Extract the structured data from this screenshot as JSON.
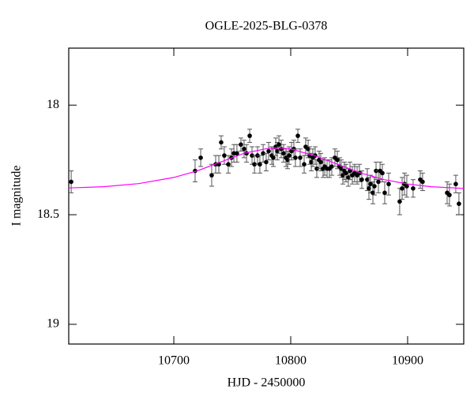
{
  "chart_data": {
    "type": "scatter",
    "title": "OGLE-2025-BLG-0378",
    "x_label": "HJD - 2450000",
    "y_label": "I magnitude",
    "xlim": [
      10610.1,
      10948
    ],
    "ylim": [
      19.09,
      17.74
    ],
    "xticks": [
      10700,
      10800,
      10900
    ],
    "yticks": [
      18,
      18.5,
      19
    ],
    "series": [
      {
        "color": "#000000",
        "x": [
          10612.2,
          10718.2,
          10723,
          10732.4,
          10735.8,
          10738.5,
          10740.5,
          10743.2,
          10746.6,
          10749.3,
          10751.4,
          10754,
          10757.4,
          10760.1,
          10762.2,
          10764.9,
          10766.9,
          10769,
          10771.6,
          10773.6,
          10776.4,
          10779,
          10781.1,
          10783.8,
          10785.1,
          10787.2,
          10788.5,
          10789.9,
          10791.9,
          10793.9,
          10796,
          10797.3,
          10798.6,
          10800.7,
          10802.7,
          10804,
          10806.1,
          10808.1,
          10811.5,
          10812.8,
          10814.9,
          10816.2,
          10817.6,
          10818.9,
          10820.9,
          10822.3,
          10824.3,
          10825.7,
          10827.7,
          10829.1,
          10831.1,
          10833.1,
          10835.1,
          10837.8,
          10839.9,
          10841.9,
          10843.2,
          10844.6,
          10845.9,
          10847.3,
          10849.3,
          10850.7,
          10852.7,
          10854.7,
          10856.8,
          10858.8,
          10860.8,
          10865.5,
          10866.9,
          10868.2,
          10870.3,
          10871.6,
          10873,
          10875,
          10876.4,
          10878.4,
          10880.4,
          10883.8,
          10893.2,
          10895.3,
          10897.3,
          10899.3,
          10904.7,
          10910.8,
          10912.8,
          10933.8,
          10935.8,
          10941.2,
          10943.9
        ],
        "values": [
          18.35,
          18.3,
          18.24,
          18.32,
          18.27,
          18.27,
          18.17,
          18.23,
          18.27,
          18.24,
          18.22,
          18.22,
          18.18,
          18.2,
          18.22,
          18.14,
          18.23,
          18.27,
          18.23,
          18.27,
          18.22,
          18.26,
          18.21,
          18.23,
          18.24,
          18.19,
          18.21,
          18.18,
          18.2,
          18.22,
          18.24,
          18.25,
          18.23,
          18.21,
          18.2,
          18.24,
          18.14,
          18.24,
          18.27,
          18.19,
          18.2,
          18.23,
          18.26,
          18.24,
          18.23,
          18.29,
          18.25,
          18.26,
          18.29,
          18.28,
          18.29,
          18.29,
          18.28,
          18.24,
          18.25,
          18.28,
          18.29,
          18.32,
          18.3,
          18.31,
          18.33,
          18.3,
          18.32,
          18.31,
          18.32,
          18.31,
          18.34,
          18.34,
          18.38,
          18.36,
          18.4,
          18.37,
          18.3,
          18.35,
          18.3,
          18.31,
          18.4,
          18.36,
          18.44,
          18.38,
          18.36,
          18.37,
          18.38,
          18.34,
          18.35,
          18.4,
          18.41,
          18.36,
          18.45
        ],
        "errors": [
          0.05,
          0.05,
          0.04,
          0.05,
          0.04,
          0.04,
          0.03,
          0.04,
          0.04,
          0.04,
          0.04,
          0.04,
          0.03,
          0.04,
          0.04,
          0.03,
          0.04,
          0.04,
          0.04,
          0.04,
          0.04,
          0.04,
          0.04,
          0.04,
          0.04,
          0.04,
          0.04,
          0.04,
          0.04,
          0.04,
          0.04,
          0.04,
          0.04,
          0.04,
          0.04,
          0.04,
          0.03,
          0.04,
          0.04,
          0.04,
          0.04,
          0.04,
          0.04,
          0.04,
          0.04,
          0.04,
          0.04,
          0.04,
          0.04,
          0.04,
          0.04,
          0.04,
          0.04,
          0.04,
          0.04,
          0.04,
          0.04,
          0.04,
          0.04,
          0.04,
          0.04,
          0.04,
          0.04,
          0.04,
          0.04,
          0.04,
          0.04,
          0.05,
          0.05,
          0.04,
          0.05,
          0.04,
          0.04,
          0.05,
          0.04,
          0.04,
          0.05,
          0.05,
          0.06,
          0.05,
          0.05,
          0.05,
          0.04,
          0.04,
          0.04,
          0.05,
          0.05,
          0.04,
          0.05
        ]
      },
      {
        "color": "#ff00ff",
        "line": true,
        "x": [
          10610.1,
          10640,
          10670,
          10700,
          10720,
          10740,
          10760,
          10780,
          10790,
          10800,
          10820,
          10840,
          10860,
          10880,
          10900,
          10920,
          10948
        ],
        "values": [
          18.378,
          18.372,
          18.358,
          18.33,
          18.3,
          18.26,
          18.22,
          18.198,
          18.195,
          18.2,
          18.23,
          18.27,
          18.31,
          18.34,
          18.36,
          18.372,
          18.38
        ]
      }
    ]
  }
}
